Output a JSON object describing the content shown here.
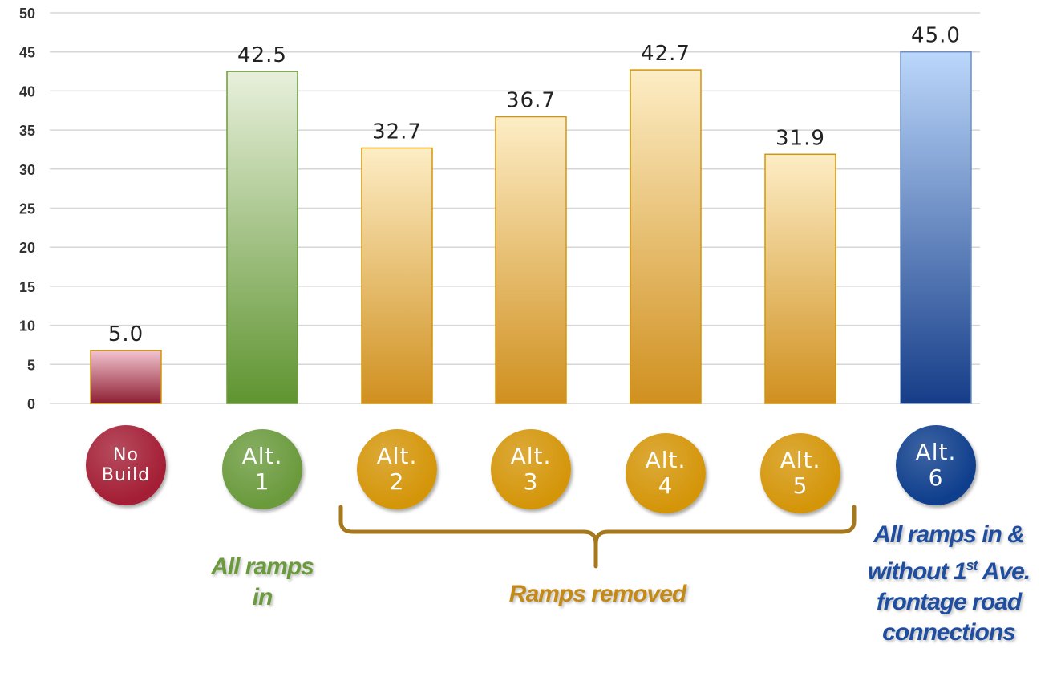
{
  "chart_data": {
    "type": "bar",
    "categories": [
      "No Build",
      "Alt. 1",
      "Alt. 2",
      "Alt. 3",
      "Alt. 4",
      "Alt. 5",
      "Alt. 6"
    ],
    "values": [
      5.0,
      42.5,
      32.7,
      36.7,
      42.7,
      31.9,
      45.0
    ],
    "data_labels": [
      "5.0",
      "42.5",
      "32.7",
      "36.7",
      "42.7",
      "31.9",
      "45.0"
    ],
    "ylim": [
      0,
      50
    ],
    "y_ticks": [
      "0",
      "5",
      "10",
      "15",
      "20",
      "25",
      "30",
      "35",
      "40",
      "45",
      "50"
    ],
    "grid": true,
    "title": "",
    "xlabel": "",
    "ylabel": ""
  },
  "category_badges": [
    {
      "line1": "No",
      "line2": "Build",
      "color": "#a41e35"
    },
    {
      "line1": "Alt.",
      "line2": "1",
      "color": "#6a9a3c"
    },
    {
      "line1": "Alt.",
      "line2": "2",
      "color": "#d49508"
    },
    {
      "line1": "Alt.",
      "line2": "3",
      "color": "#d49508"
    },
    {
      "line1": "Alt.",
      "line2": "4",
      "color": "#d49508"
    },
    {
      "line1": "Alt.",
      "line2": "5",
      "color": "#d49508"
    },
    {
      "line1": "Alt.",
      "line2": "6",
      "color": "#0e3e8c"
    }
  ],
  "bar_styles": [
    {
      "top": "#f3c4cf",
      "bottom": "#8e1f33",
      "stroke": "#d49508"
    },
    {
      "top": "#e8f0dc",
      "bottom": "#5f9430",
      "stroke": "#6a9a3c"
    },
    {
      "top": "#fdedc5",
      "bottom": "#d0901f",
      "stroke": "#d49508"
    },
    {
      "top": "#fdedc5",
      "bottom": "#d0901f",
      "stroke": "#d49508"
    },
    {
      "top": "#fdedc5",
      "bottom": "#d0901f",
      "stroke": "#d49508"
    },
    {
      "top": "#fdedc5",
      "bottom": "#d0901f",
      "stroke": "#d49508"
    },
    {
      "top": "#bcd7fb",
      "bottom": "#163d88",
      "stroke": "#6e8fbf"
    }
  ],
  "annotations": {
    "alt1": {
      "line1": "All ramps",
      "line2": "in",
      "color": "#6a9a3c"
    },
    "removed": {
      "text": "Ramps removed",
      "color": "#c48a17"
    },
    "alt6": {
      "line1": "All ramps in &",
      "line2_pre": "without 1",
      "line2_sup": "st",
      "line2_post": " Ave.",
      "line3": "frontage road",
      "line4": "connections",
      "color": "#1f4da0"
    }
  },
  "colors": {
    "grid": "#d6d6d6",
    "axis_text": "#333333",
    "label_text": "#222222",
    "brace": "#a5781e"
  }
}
